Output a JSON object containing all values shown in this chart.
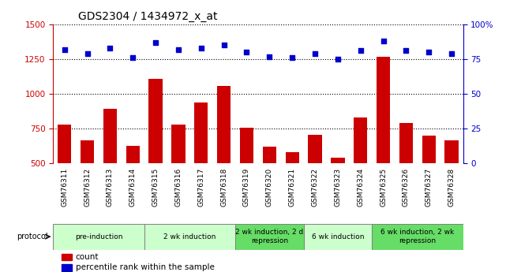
{
  "title": "GDS2304 / 1434972_x_at",
  "samples": [
    "GSM76311",
    "GSM76312",
    "GSM76313",
    "GSM76314",
    "GSM76315",
    "GSM76316",
    "GSM76317",
    "GSM76318",
    "GSM76319",
    "GSM76320",
    "GSM76321",
    "GSM76322",
    "GSM76323",
    "GSM76324",
    "GSM76325",
    "GSM76326",
    "GSM76327",
    "GSM76328"
  ],
  "counts": [
    780,
    665,
    890,
    625,
    1110,
    780,
    940,
    1055,
    755,
    620,
    580,
    705,
    540,
    830,
    1270,
    790,
    700,
    665
  ],
  "percentile_ranks": [
    82,
    79,
    83,
    76,
    87,
    82,
    83,
    85,
    80,
    77,
    76,
    79,
    75,
    81,
    88,
    81,
    80,
    79
  ],
  "bar_color": "#cc0000",
  "dot_color": "#0000cc",
  "left_axis_color": "#cc0000",
  "right_axis_color": "#0000cc",
  "ylim_left": [
    500,
    1500
  ],
  "ylim_right": [
    0,
    100
  ],
  "yticks_left": [
    500,
    750,
    1000,
    1250,
    1500
  ],
  "yticks_right": [
    0,
    25,
    50,
    75,
    100
  ],
  "groups": [
    {
      "label": "pre-induction",
      "start": 0,
      "end": 3,
      "color": "#ccffcc"
    },
    {
      "label": "2 wk induction",
      "start": 4,
      "end": 7,
      "color": "#ccffcc"
    },
    {
      "label": "2 wk induction, 2 d\nrepression",
      "start": 8,
      "end": 10,
      "color": "#66dd66"
    },
    {
      "label": "6 wk induction",
      "start": 11,
      "end": 13,
      "color": "#ccffcc"
    },
    {
      "label": "6 wk induction, 2 wk\nrepression",
      "start": 14,
      "end": 17,
      "color": "#66dd66"
    }
  ],
  "protocol_label": "protocol",
  "legend_count_label": "count",
  "legend_percentile_label": "percentile rank within the sample",
  "background_color": "#ffffff",
  "tick_bg_color": "#c8c8c8"
}
